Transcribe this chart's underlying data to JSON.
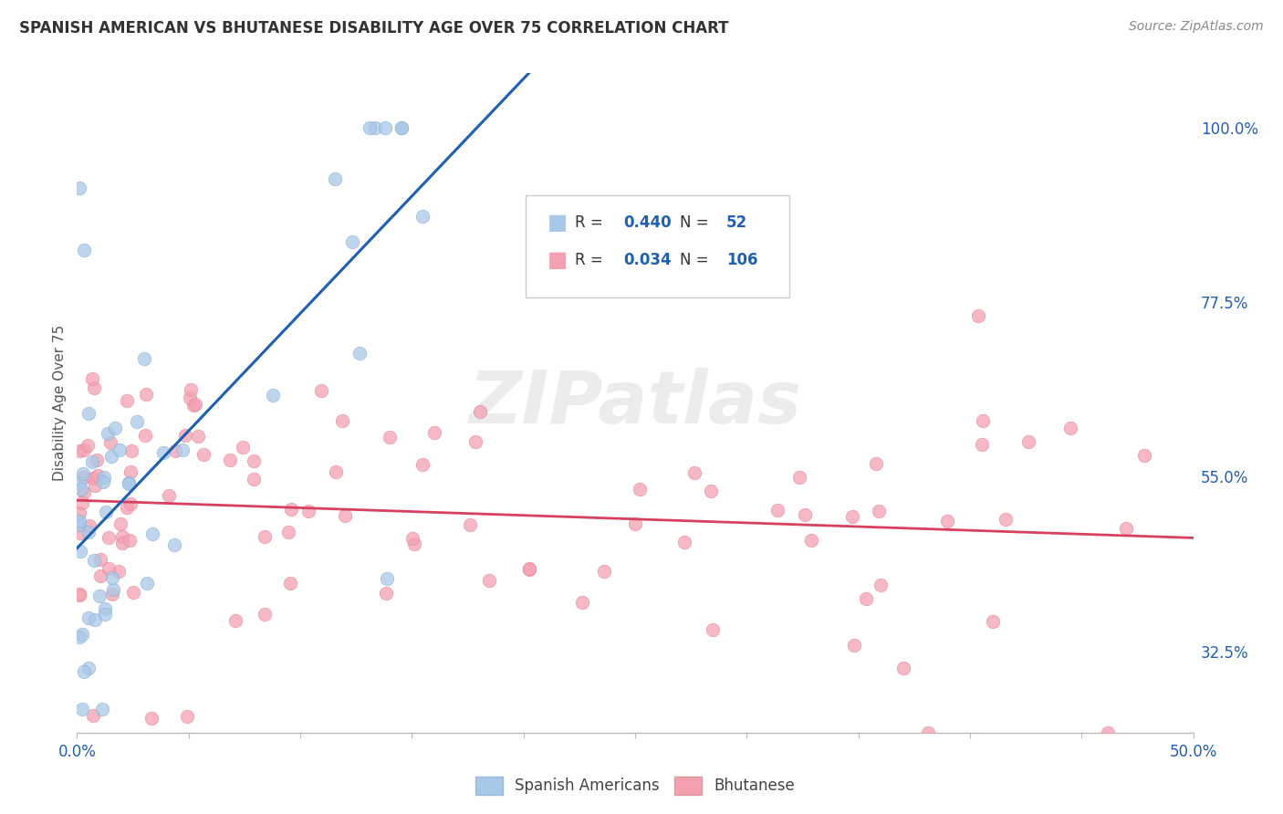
{
  "title": "SPANISH AMERICAN VS BHUTANESE DISABILITY AGE OVER 75 CORRELATION CHART",
  "source": "Source: ZipAtlas.com",
  "ylabel": "Disability Age Over 75",
  "right_ytick_vals": [
    32.5,
    55.0,
    77.5,
    100.0
  ],
  "right_ytick_labels": [
    "32.5%",
    "55.0%",
    "77.5%",
    "100.0%"
  ],
  "xlim": [
    0.0,
    50.0
  ],
  "ylim": [
    22.0,
    107.0
  ],
  "watermark": "ZIPatlas",
  "legend1_r": "0.440",
  "legend1_n": "52",
  "legend2_r": "0.034",
  "legend2_n": "106",
  "blue_color": "#A8C8E8",
  "pink_color": "#F4A0B0",
  "blue_line_color": "#2060B0",
  "pink_line_color": "#D84060",
  "grid_color": "#CCCCCC",
  "title_color": "#333333",
  "source_color": "#888888",
  "axis_label_color": "#555555",
  "tick_label_color": "#2060B0",
  "sa_seed": 17,
  "bh_seed": 99
}
